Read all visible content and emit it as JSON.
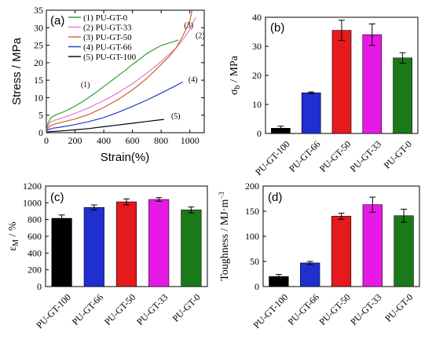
{
  "chart_data": [
    {
      "panel": "(a)",
      "type": "line",
      "xlabel": "Strain(%)",
      "ylabel": "Stress / MPa",
      "xlim": [
        0,
        1100
      ],
      "ylim": [
        0,
        35
      ],
      "xticks": [
        0,
        200,
        400,
        600,
        800,
        1000
      ],
      "yticks": [
        0,
        5,
        10,
        15,
        20,
        25,
        30,
        35
      ],
      "legend_position": "top-left",
      "series": [
        {
          "name": "(1) PU-GT-0",
          "color": "#2ca02c",
          "annotation": "(1)",
          "annotation_at": [
            240,
            13
          ],
          "x": [
            0,
            10,
            30,
            60,
            100,
            150,
            200,
            250,
            300,
            350,
            400,
            450,
            500,
            550,
            600,
            650,
            700,
            750,
            800,
            850,
            900,
            920
          ],
          "y": [
            0,
            2.5,
            4.2,
            5.0,
            5.6,
            6.5,
            7.6,
            8.8,
            10.2,
            11.6,
            13.2,
            14.7,
            16.3,
            17.8,
            19.5,
            21.0,
            22.6,
            23.8,
            24.9,
            25.6,
            26.2,
            26.5
          ]
        },
        {
          "name": "(2) PU-GT-33",
          "color": "#e377c2",
          "annotation": "(2)",
          "annotation_at": [
            1040,
            27
          ],
          "x": [
            0,
            10,
            30,
            60,
            100,
            150,
            200,
            300,
            400,
            500,
            600,
            700,
            800,
            900,
            950,
            1000,
            1040
          ],
          "y": [
            0,
            1.8,
            3.0,
            3.6,
            4.1,
            4.8,
            5.5,
            7.2,
            9.2,
            11.4,
            14.0,
            17.0,
            20.3,
            24.0,
            26.5,
            29.5,
            33.0
          ]
        },
        {
          "name": "(3) PU-GT-50",
          "color": "#c8623a",
          "annotation": "(3)",
          "annotation_at": [
            960,
            30
          ],
          "x": [
            0,
            10,
            30,
            60,
            100,
            150,
            200,
            300,
            400,
            500,
            600,
            700,
            800,
            850,
            900,
            950,
            1000,
            1015
          ],
          "y": [
            0,
            1.2,
            2.0,
            2.5,
            2.9,
            3.4,
            3.9,
            5.3,
            7.2,
            9.5,
            12.2,
            15.5,
            19.5,
            21.5,
            24.0,
            27.5,
            32.0,
            35.0
          ]
        },
        {
          "name": "(4) PU-GT-66",
          "color": "#1f3fbf",
          "annotation": "(4)",
          "annotation_at": [
            990,
            14.5
          ],
          "x": [
            0,
            10,
            50,
            100,
            200,
            300,
            400,
            500,
            600,
            700,
            800,
            900,
            950
          ],
          "y": [
            0,
            0.8,
            1.3,
            1.6,
            2.3,
            3.2,
            4.3,
            5.8,
            7.5,
            9.3,
            11.3,
            13.4,
            14.5
          ]
        },
        {
          "name": "(5) PU-GT-100",
          "color": "#000000",
          "annotation": "(5)",
          "annotation_at": [
            870,
            4.0
          ],
          "x": [
            0,
            20,
            100,
            200,
            300,
            400,
            500,
            600,
            700,
            800,
            820
          ],
          "y": [
            0,
            0.3,
            0.5,
            0.8,
            1.2,
            1.7,
            2.2,
            2.7,
            3.2,
            3.7,
            3.8
          ]
        }
      ]
    },
    {
      "panel": "(b)",
      "type": "bar",
      "ylabel": "σb / MPa",
      "ylim": [
        0,
        40
      ],
      "yticks": [
        0,
        10,
        20,
        30,
        40
      ],
      "categories": [
        "PU-GT-100",
        "PU-GT-66",
        "PU-GT-50",
        "PU-GT-33",
        "PU-GT-0"
      ],
      "values": [
        1.8,
        14,
        35.5,
        34,
        26
      ],
      "errors": [
        0.7,
        0.3,
        3.5,
        3.7,
        1.8
      ],
      "colors": [
        "#000000",
        "#1f2fd0",
        "#e41a1c",
        "#e619e6",
        "#1a7a1a"
      ]
    },
    {
      "panel": "(c)",
      "type": "bar",
      "ylabel": "εM / %",
      "ylim": [
        0,
        1200
      ],
      "yticks": [
        0,
        200,
        400,
        600,
        800,
        1000,
        1200
      ],
      "categories": [
        "PU-GT-100",
        "PU-GT-66",
        "PU-GT-50",
        "PU-GT-33",
        "PU-GT-0"
      ],
      "values": [
        815,
        945,
        1012,
        1040,
        915
      ],
      "errors": [
        40,
        30,
        35,
        22,
        35
      ],
      "colors": [
        "#000000",
        "#1f2fd0",
        "#e41a1c",
        "#e619e6",
        "#1a7a1a"
      ]
    },
    {
      "panel": "(d)",
      "type": "bar",
      "ylabel": "Toughness / MJ·m−3",
      "ylim": [
        0,
        200
      ],
      "yticks": [
        0,
        50,
        100,
        150,
        200
      ],
      "categories": [
        "PU-GT-100",
        "PU-GT-66",
        "PU-GT-50",
        "PU-GT-33",
        "PU-GT-0"
      ],
      "values": [
        20,
        47,
        140,
        163,
        141
      ],
      "errors": [
        4,
        3,
        6,
        15,
        13
      ],
      "colors": [
        "#000000",
        "#1f2fd0",
        "#e41a1c",
        "#e619e6",
        "#1a7a1a"
      ]
    }
  ]
}
